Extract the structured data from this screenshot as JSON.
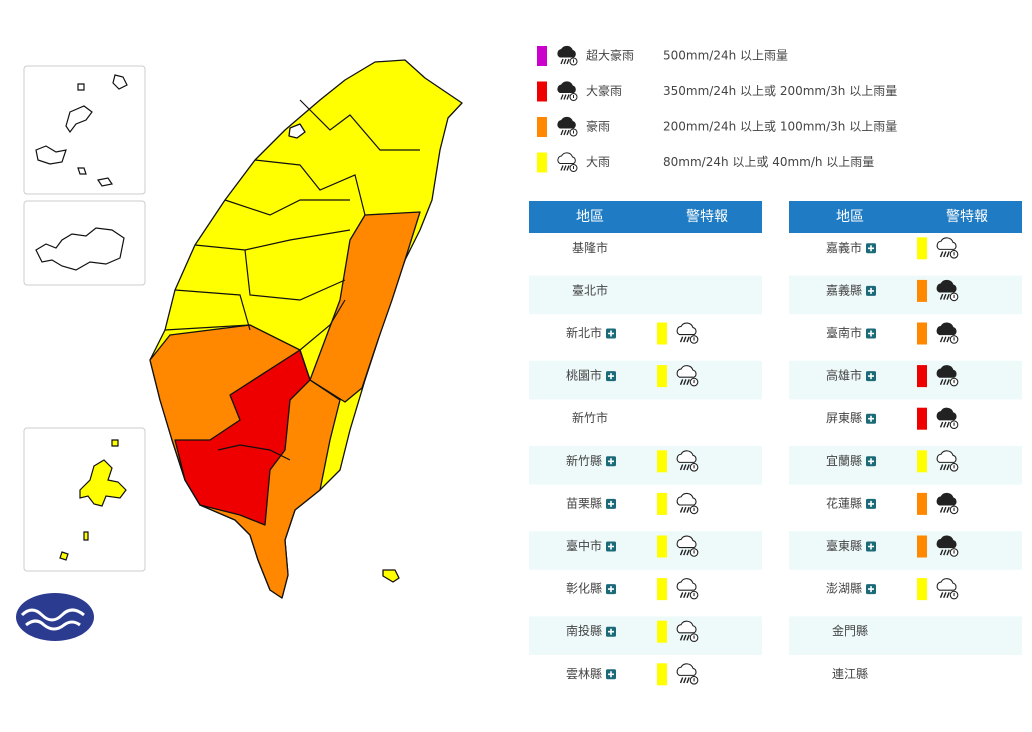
{
  "legend": [
    {
      "color": "#cc00cc",
      "icon": "filled",
      "label": "超大豪雨",
      "description": "500mm/24h 以上雨量"
    },
    {
      "color": "#ee0000",
      "icon": "filled",
      "label": "大豪雨",
      "description": "350mm/24h 以上或 200mm/3h 以上雨量"
    },
    {
      "color": "#ff8800",
      "icon": "filled",
      "label": "豪雨",
      "description": "200mm/24h 以上或 100mm/3h 以上雨量"
    },
    {
      "color": "#ffff00",
      "icon": "outline",
      "label": "大雨",
      "description": "80mm/24h 以上或 40mm/h 以上雨量"
    }
  ],
  "tables": [
    {
      "headers": [
        "地區",
        "警特報"
      ],
      "rows": [
        {
          "region": "基隆市",
          "warning": null
        },
        {
          "region": "臺北市",
          "warning": null
        },
        {
          "region": "新北市",
          "warning": "#ffff00"
        },
        {
          "region": "桃園市",
          "warning": "#ffff00"
        },
        {
          "region": "新竹市",
          "warning": null
        },
        {
          "region": "新竹縣",
          "warning": "#ffff00"
        },
        {
          "region": "苗栗縣",
          "warning": "#ffff00"
        },
        {
          "region": "臺中市",
          "warning": "#ffff00"
        },
        {
          "region": "彰化縣",
          "warning": "#ffff00"
        },
        {
          "region": "南投縣",
          "warning": "#ffff00"
        },
        {
          "region": "雲林縣",
          "warning": "#ffff00"
        }
      ]
    },
    {
      "headers": [
        "地區",
        "警特報"
      ],
      "rows": [
        {
          "region": "嘉義市",
          "warning": "#ffff00"
        },
        {
          "region": "嘉義縣",
          "warning": "#ff8800"
        },
        {
          "region": "臺南市",
          "warning": "#ff8800"
        },
        {
          "region": "高雄市",
          "warning": "#ee0000"
        },
        {
          "region": "屏東縣",
          "warning": "#ee0000"
        },
        {
          "region": "宜蘭縣",
          "warning": "#ffff00"
        },
        {
          "region": "花蓮縣",
          "warning": "#ff8800"
        },
        {
          "region": "臺東縣",
          "warning": "#ff8800"
        },
        {
          "region": "澎湖縣",
          "warning": "#ffff00"
        },
        {
          "region": "金門縣",
          "warning": null
        },
        {
          "region": "連江縣",
          "warning": null
        }
      ]
    }
  ]
}
